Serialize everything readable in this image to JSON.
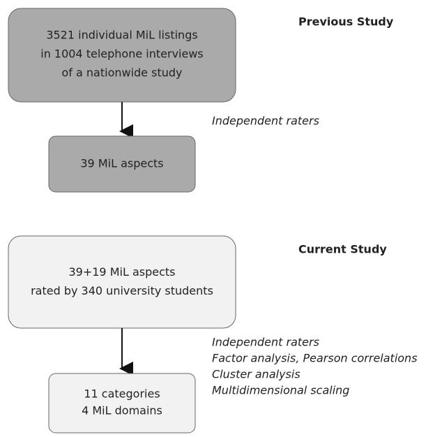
{
  "previous": {
    "heading": "Previous Study",
    "box1": [
      "3521 individual MiL listings",
      "in 1004 telephone interviews",
      "of a nationwide study"
    ],
    "methods": [
      "Independent raters"
    ],
    "box2": [
      "39 MiL aspects"
    ]
  },
  "current": {
    "heading": "Current Study",
    "box1": [
      "39+19 MiL aspects",
      "rated by 340 university students"
    ],
    "methods": [
      "Independent raters",
      "Factor analysis, Pearson correlations",
      "Cluster analysis",
      "Multidimensional scaling"
    ],
    "box2": [
      "11 categories",
      "4 MiL domains"
    ]
  }
}
